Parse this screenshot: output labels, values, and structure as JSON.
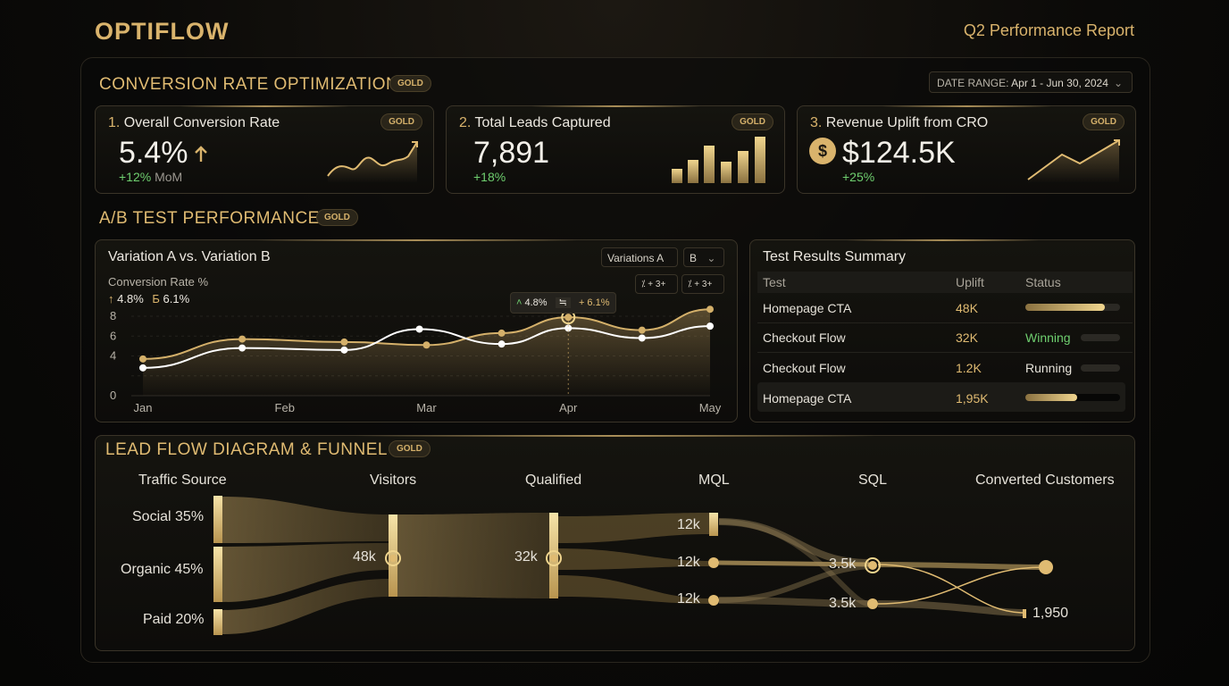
{
  "brand": "OPTIFLOW",
  "report_title": "Q2 Performance Report",
  "sections": {
    "cro": {
      "title": "CONVERSION RATE OPTIMIZATION",
      "badge": "GOLD"
    },
    "ab": {
      "title": "A/B TEST PERFORMANCE",
      "badge": "GOLD"
    },
    "flow": {
      "title": "LEAD FLOW DIAGRAM & FUNNEL",
      "badge": "GOLD"
    }
  },
  "date_range": {
    "label": "DATE RANGE:",
    "value": "Apr 1 - Jun 30, 2024"
  },
  "kpis": [
    {
      "num": "1.",
      "label": "Overall Conversion Rate",
      "badge": "GOLD",
      "value": "5.4%",
      "change": "+12%",
      "change_suffix": "MoM"
    },
    {
      "num": "2.",
      "label": "Total Leads Captured",
      "badge": "GOLD",
      "value": "7,891",
      "change": "+18%",
      "change_suffix": ""
    },
    {
      "num": "3.",
      "label": "Revenue Uplift from CRO",
      "badge": "GOLD",
      "value": "$124.5K",
      "change": "+25%",
      "change_suffix": ""
    }
  ],
  "ab_chart": {
    "title": "Variation A vs. Variation B",
    "subtitle": "Conversion Rate %",
    "legend_a": "4.8%",
    "legend_b": "6.1%",
    "select_a": "Variations A",
    "select_b": "B",
    "tooltip_a": "4.8%",
    "tooltip_mid": "≒",
    "tooltip_b": "+ 6.1%",
    "ctrl1": "⁒ + 3+",
    "ctrl2": "⁒ + 3+"
  },
  "chart_data": {
    "type": "line",
    "x": [
      "Jan",
      "Feb",
      "Mar",
      "Apr",
      "May"
    ],
    "ylim": [
      0,
      8
    ],
    "yticks": [
      "0",
      "4",
      "6",
      "8"
    ],
    "series": [
      {
        "name": "B",
        "color": "#d4b06a",
        "points": [
          [
            0,
            3.7
          ],
          [
            0.7,
            5.7
          ],
          [
            1.42,
            5.4
          ],
          [
            2.0,
            5.1
          ],
          [
            2.53,
            6.3
          ],
          [
            3.0,
            7.9
          ],
          [
            3.52,
            6.6
          ],
          [
            4.0,
            8.7
          ]
        ]
      },
      {
        "name": "A",
        "color": "#ffffff",
        "points": [
          [
            0,
            2.8
          ],
          [
            0.7,
            4.8
          ],
          [
            1.42,
            4.6
          ],
          [
            1.95,
            6.7
          ],
          [
            2.53,
            5.2
          ],
          [
            3.0,
            6.8
          ],
          [
            3.52,
            5.8
          ],
          [
            4.0,
            7.0
          ]
        ]
      }
    ],
    "highlight_x": 3.0,
    "grid": true
  },
  "results": {
    "title": "Test Results Summary",
    "headers": [
      "Test",
      "Uplift",
      "Status"
    ],
    "rows": [
      {
        "test": "Homepage CTA",
        "uplift": "48K",
        "status": "",
        "bar": 0.84
      },
      {
        "test": "Checkout Flow",
        "uplift": "32K",
        "status": "Winning",
        "bar": 0
      },
      {
        "test": "Checkout Flow",
        "uplift": "1.2K",
        "status": "Running",
        "bar": 0
      },
      {
        "test": "Homepage CTA",
        "uplift": "1,95K",
        "status": "",
        "bar": 0.55
      }
    ]
  },
  "flow": {
    "stages": [
      "Traffic Source",
      "Visitors",
      "Qualified",
      "MQL",
      "SQL",
      "Converted Customers"
    ],
    "sources": [
      "Social 35%",
      "Organic 45%",
      "Paid 20%"
    ],
    "visitors": "48k",
    "qualified": "32k",
    "mql": [
      "12k",
      "12k",
      "12k"
    ],
    "sql": [
      "3.5k",
      "3.5k"
    ],
    "converted": "1,950"
  }
}
